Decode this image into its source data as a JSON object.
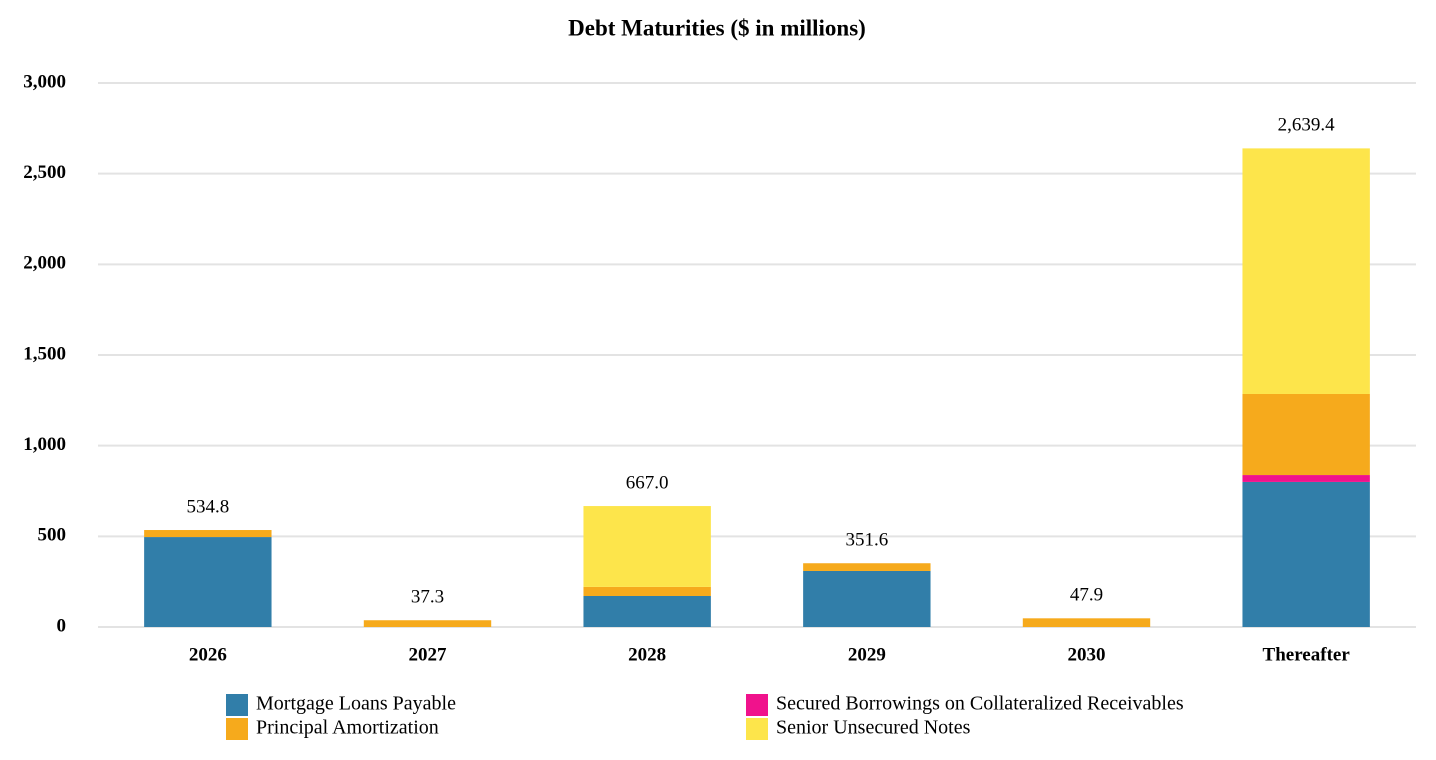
{
  "chart_data": {
    "type": "stacked-bar",
    "title": "Debt Maturities ($ in millions)",
    "categories": [
      "2026",
      "2027",
      "2028",
      "2029",
      "2030",
      "Thereafter"
    ],
    "series": [
      {
        "name": "Mortgage Loans Payable",
        "color": "#317ea9",
        "values": [
          496.0,
          0,
          171.0,
          309.0,
          0,
          800.0
        ]
      },
      {
        "name": "Secured Borrowings on Collateralized Receivables",
        "color": "#f0128c",
        "values": [
          0,
          0,
          0,
          0,
          0,
          38.0
        ]
      },
      {
        "name": "Principal Amortization",
        "color": "#f6aa1c",
        "values": [
          38.8,
          37.3,
          50.0,
          42.6,
          47.9,
          447.0
        ]
      },
      {
        "name": "Senior Unsecured Notes",
        "color": "#fde54b",
        "values": [
          0,
          0,
          446.0,
          0,
          0,
          1354.4
        ]
      }
    ],
    "totals": {
      "values": [
        534.8,
        37.3,
        667.0,
        351.6,
        47.9,
        2639.4
      ],
      "value_labels": [
        "534.8",
        "37.3",
        "667.0",
        "351.6",
        "47.9",
        "2,639.4"
      ]
    },
    "ylim": [
      0,
      3000
    ],
    "yticks": [
      0,
      500,
      {
        "value": 1000,
        "label": "1,000"
      },
      {
        "value": 1500,
        "label": "1,500"
      },
      {
        "value": 2000,
        "label": "2,000"
      },
      {
        "value": 2500,
        "label": "2,500"
      },
      {
        "value": 3000,
        "label": "3,000"
      }
    ],
    "grid": true
  }
}
